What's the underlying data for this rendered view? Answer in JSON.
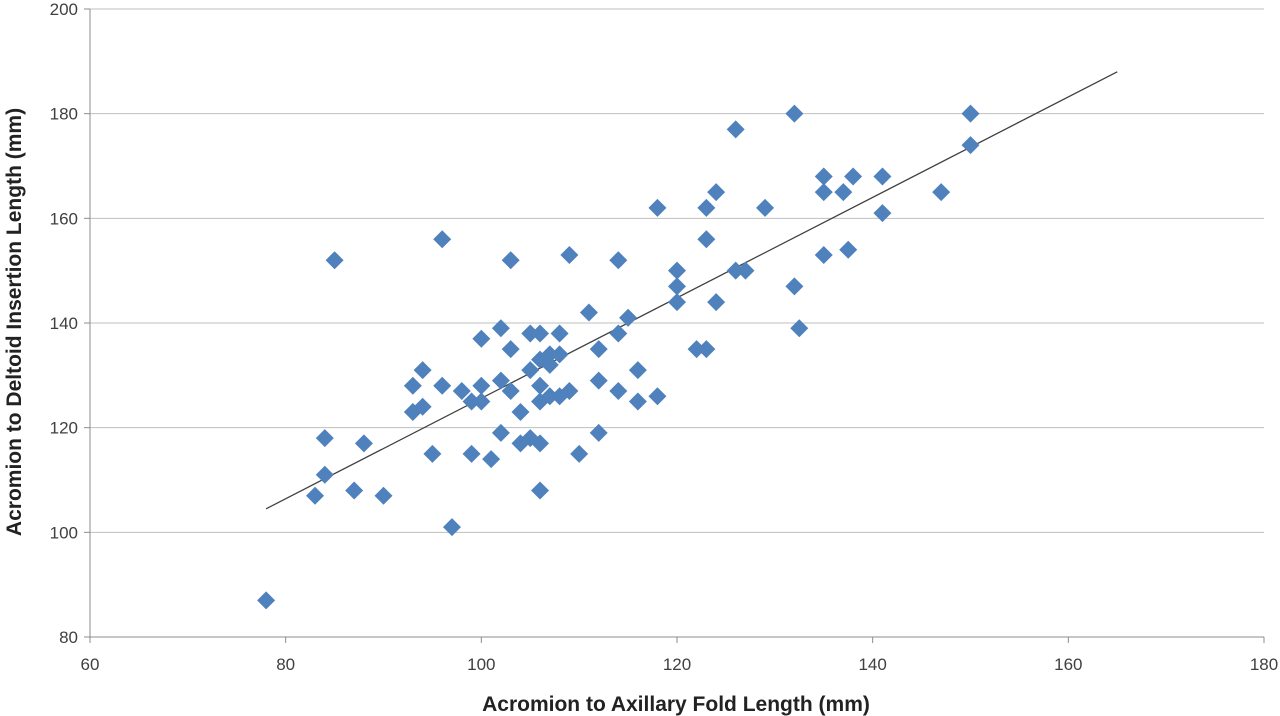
{
  "chart_data": {
    "type": "scatter",
    "xlabel": "Acromion to Axillary Fold Length (mm)",
    "ylabel": "Acromion to Deltoid Insertion Length (mm)",
    "xlim": [
      60,
      180
    ],
    "ylim": [
      80,
      200
    ],
    "x_ticks": [
      60,
      80,
      100,
      120,
      140,
      160,
      180
    ],
    "y_ticks": [
      80,
      100,
      120,
      140,
      160,
      180,
      200
    ],
    "grid": "horizontal",
    "legend": "none",
    "marker": "diamond",
    "colors": {
      "marker": "#4f81bd",
      "trendline": "#404040",
      "grid": "#bfbfbf",
      "axis": "#8c8c8c"
    },
    "trendline": {
      "x": [
        78,
        165
      ],
      "y": [
        104.5,
        188
      ]
    },
    "points": [
      [
        78,
        87
      ],
      [
        83,
        107
      ],
      [
        84,
        118
      ],
      [
        84,
        111
      ],
      [
        85,
        152
      ],
      [
        87,
        108
      ],
      [
        88,
        117
      ],
      [
        90,
        107
      ],
      [
        93,
        128
      ],
      [
        93,
        123
      ],
      [
        94,
        131
      ],
      [
        94,
        124
      ],
      [
        95,
        115
      ],
      [
        96,
        156
      ],
      [
        96,
        128
      ],
      [
        97,
        101
      ],
      [
        98,
        127
      ],
      [
        99,
        125
      ],
      [
        99,
        115
      ],
      [
        100,
        137
      ],
      [
        100,
        128
      ],
      [
        100,
        125
      ],
      [
        101,
        114
      ],
      [
        102,
        139
      ],
      [
        102,
        129
      ],
      [
        102,
        119
      ],
      [
        103,
        152
      ],
      [
        103,
        135
      ],
      [
        103,
        127
      ],
      [
        104,
        123
      ],
      [
        104,
        117
      ],
      [
        105,
        138
      ],
      [
        105,
        131
      ],
      [
        105,
        118
      ],
      [
        106,
        138
      ],
      [
        106,
        133
      ],
      [
        106,
        128
      ],
      [
        106,
        125
      ],
      [
        106,
        117
      ],
      [
        106,
        108
      ],
      [
        107,
        134
      ],
      [
        107,
        132
      ],
      [
        107,
        126
      ],
      [
        108,
        138
      ],
      [
        108,
        134
      ],
      [
        108,
        126
      ],
      [
        109,
        153
      ],
      [
        109,
        127
      ],
      [
        110,
        115
      ],
      [
        111,
        142
      ],
      [
        112,
        135
      ],
      [
        112,
        129
      ],
      [
        112,
        119
      ],
      [
        114,
        152
      ],
      [
        114,
        138
      ],
      [
        114,
        127
      ],
      [
        115,
        141
      ],
      [
        116,
        131
      ],
      [
        116,
        125
      ],
      [
        118,
        162
      ],
      [
        118,
        126
      ],
      [
        120,
        150
      ],
      [
        120,
        147
      ],
      [
        120,
        144
      ],
      [
        122,
        135
      ],
      [
        123,
        162
      ],
      [
        123,
        156
      ],
      [
        123,
        135
      ],
      [
        124,
        165
      ],
      [
        124,
        144
      ],
      [
        126,
        177
      ],
      [
        126,
        150
      ],
      [
        127,
        150
      ],
      [
        129,
        162
      ],
      [
        132,
        180
      ],
      [
        132,
        147
      ],
      [
        132.5,
        139
      ],
      [
        135,
        168
      ],
      [
        135,
        165
      ],
      [
        135,
        153
      ],
      [
        137,
        165
      ],
      [
        137.5,
        154
      ],
      [
        138,
        168
      ],
      [
        141,
        168
      ],
      [
        141,
        161
      ],
      [
        147,
        165
      ],
      [
        150,
        180
      ],
      [
        150,
        174
      ]
    ]
  }
}
